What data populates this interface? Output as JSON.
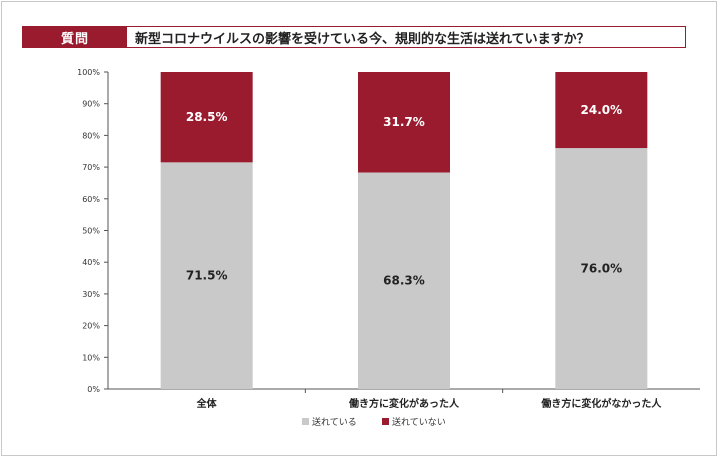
{
  "question": {
    "tag": "質問",
    "text": "新型コロナウイルスの影響を受けている今、規則的な生活は送れていますか？"
  },
  "colors": {
    "accent": "#9b1b2e",
    "gray": "#c9c9c9"
  },
  "chart_data": {
    "type": "bar",
    "stacked": true,
    "categories": [
      "全体",
      "働き方に変化があった人",
      "働き方に変化がなかった人"
    ],
    "series": [
      {
        "name": "送れている",
        "values": [
          71.5,
          68.3,
          76.0
        ],
        "labels": [
          "71.5%",
          "68.3%",
          "76.0%"
        ],
        "color": "#c9c9c9"
      },
      {
        "name": "送れていない",
        "values": [
          28.5,
          31.7,
          24.0
        ],
        "labels": [
          "28.5%",
          "31.7%",
          "24.0%"
        ],
        "color": "#9b1b2e"
      }
    ],
    "yticks": [
      "0%",
      "10%",
      "20%",
      "30%",
      "40%",
      "50%",
      "60%",
      "70%",
      "80%",
      "90%",
      "100%"
    ],
    "ylim": [
      0,
      100
    ],
    "grid": false,
    "legend_position": "bottom"
  }
}
